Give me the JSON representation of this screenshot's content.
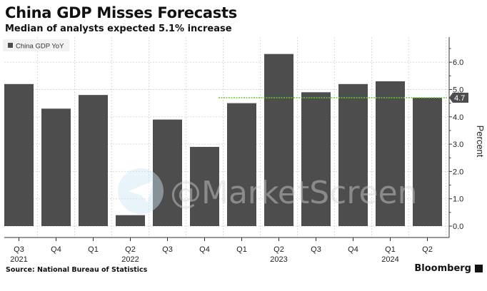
{
  "header": {
    "title": "China GDP Misses Forecasts",
    "subtitle": "Median of analysts expected 5.1% increase"
  },
  "footer": {
    "source": "Source: National Bureau of Statistics",
    "brand": "Bloomberg"
  },
  "watermark": "@MarketScreen",
  "colors": {
    "bar": "#4d4d4d",
    "reference_line": "#66cc33",
    "grid": "#d9d9d9",
    "axis": "#333333",
    "label_box": "#4d4d4d"
  },
  "chart_data": {
    "type": "bar",
    "categories": [
      "Q3",
      "Q4",
      "Q1",
      "Q2",
      "Q3",
      "Q4",
      "Q1",
      "Q2",
      "Q3",
      "Q4",
      "Q1",
      "Q2"
    ],
    "year_labels": [
      {
        "label": "2021",
        "index": 0
      },
      {
        "label": "2022",
        "index": 3
      },
      {
        "label": "2023",
        "index": 7
      },
      {
        "label": "2024",
        "index": 10
      }
    ],
    "series": [
      {
        "name": "China GDP YoY",
        "values": [
          5.2,
          4.3,
          4.8,
          0.4,
          3.9,
          2.9,
          4.5,
          6.3,
          4.9,
          5.2,
          5.3,
          4.7
        ]
      }
    ],
    "reference_line": {
      "value": 4.7,
      "start_index": 6,
      "style": "dotted"
    },
    "last_value_label": "4.7",
    "legend": {
      "label": "China GDP YoY",
      "position": "top-left"
    },
    "ylabel": "Percent",
    "xlabel": "",
    "ylim": [
      -0.2,
      6.9
    ],
    "yticks": [
      0.0,
      1.0,
      2.0,
      3.0,
      4.0,
      5.0,
      6.0
    ],
    "ytick_labels": [
      "0.0",
      "1.0",
      "2.0",
      "3.0",
      "4.0",
      "5.0",
      "6.0"
    ],
    "y_axis_side": "right"
  }
}
